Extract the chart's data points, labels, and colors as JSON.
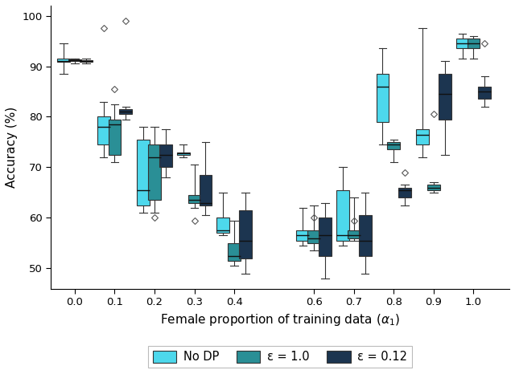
{
  "title": "",
  "xlabel": "Female proportion of training data ($\\alpha_1$)",
  "ylabel": "Accuracy (%)",
  "ylim": [
    46,
    102
  ],
  "xlim": [
    -0.06,
    1.09
  ],
  "colors": {
    "no_dp": "#4DD8EC",
    "eps1": "#2A8F96",
    "eps012": "#1C3550"
  },
  "box_width": 0.032,
  "offsets": {
    "no_dp": -0.028,
    "eps1": 0.0,
    "eps012": 0.028
  },
  "series": {
    "no_dp": {
      "label": "No DP",
      "boxes": {
        "0.0": {
          "whislo": 88.5,
          "q1": 90.8,
          "med": 91.1,
          "q3": 91.5,
          "whishi": 94.5,
          "fliers": []
        },
        "0.1": {
          "whislo": 72.0,
          "q1": 74.5,
          "med": 78.0,
          "q3": 80.0,
          "whishi": 83.0,
          "fliers": [
            97.5
          ]
        },
        "0.2": {
          "whislo": 61.0,
          "q1": 62.5,
          "med": 65.5,
          "q3": 75.5,
          "whishi": 78.0,
          "fliers": []
        },
        "0.3": {
          "whislo": 72.0,
          "q1": 72.5,
          "med": 72.7,
          "q3": 73.0,
          "whishi": 74.5,
          "fliers": []
        },
        "0.4": {
          "whislo": 56.5,
          "q1": 57.0,
          "med": 57.5,
          "q3": 60.0,
          "whishi": 65.0,
          "fliers": []
        },
        "0.6": {
          "whislo": 54.5,
          "q1": 55.5,
          "med": 56.5,
          "q3": 57.5,
          "whishi": 62.0,
          "fliers": []
        },
        "0.7": {
          "whislo": 54.5,
          "q1": 55.5,
          "med": 56.5,
          "q3": 65.5,
          "whishi": 70.0,
          "fliers": []
        },
        "0.8": {
          "whislo": 74.5,
          "q1": 79.0,
          "med": 86.0,
          "q3": 88.5,
          "whishi": 93.5,
          "fliers": []
        },
        "0.9": {
          "whislo": 72.0,
          "q1": 74.5,
          "med": 76.5,
          "q3": 77.5,
          "whishi": 97.5,
          "fliers": []
        },
        "1.0": {
          "whislo": 91.5,
          "q1": 93.5,
          "med": 94.5,
          "q3": 95.5,
          "whishi": 96.5,
          "fliers": []
        }
      }
    },
    "eps1": {
      "label": "ε = 1.0",
      "boxes": {
        "0.0": {
          "whislo": 90.5,
          "q1": 91.0,
          "med": 91.2,
          "q3": 91.3,
          "whishi": 91.5,
          "fliers": []
        },
        "0.1": {
          "whislo": 71.0,
          "q1": 72.5,
          "med": 78.5,
          "q3": 79.5,
          "whishi": 82.5,
          "fliers": [
            85.5
          ]
        },
        "0.2": {
          "whislo": 61.0,
          "q1": 63.5,
          "med": 72.0,
          "q3": 74.5,
          "whishi": 78.0,
          "fliers": [
            60.0
          ]
        },
        "0.3": {
          "whislo": 62.0,
          "q1": 63.0,
          "med": 63.5,
          "q3": 64.5,
          "whishi": 70.5,
          "fliers": [
            59.5
          ]
        },
        "0.4": {
          "whislo": 50.5,
          "q1": 51.5,
          "med": 52.5,
          "q3": 55.0,
          "whishi": 59.5,
          "fliers": []
        },
        "0.6": {
          "whislo": 53.5,
          "q1": 55.0,
          "med": 56.0,
          "q3": 57.5,
          "whishi": 62.5,
          "fliers": [
            60.0
          ]
        },
        "0.7": {
          "whislo": 55.5,
          "q1": 56.0,
          "med": 56.5,
          "q3": 57.5,
          "whishi": 64.0,
          "fliers": [
            59.5
          ]
        },
        "0.8": {
          "whislo": 71.0,
          "q1": 73.5,
          "med": 74.5,
          "q3": 75.0,
          "whishi": 75.5,
          "fliers": []
        },
        "0.9": {
          "whislo": 65.0,
          "q1": 65.5,
          "med": 66.0,
          "q3": 66.5,
          "whishi": 67.0,
          "fliers": [
            80.5
          ]
        },
        "1.0": {
          "whislo": 91.5,
          "q1": 93.5,
          "med": 94.5,
          "q3": 95.5,
          "whishi": 96.0,
          "fliers": []
        }
      }
    },
    "eps012": {
      "label": "ε = 0.12",
      "boxes": {
        "0.0": {
          "whislo": 90.5,
          "q1": 90.8,
          "med": 91.0,
          "q3": 91.2,
          "whishi": 91.5,
          "fliers": []
        },
        "0.1": {
          "whislo": 79.5,
          "q1": 80.5,
          "med": 81.0,
          "q3": 81.5,
          "whishi": 82.0,
          "fliers": [
            99.0
          ]
        },
        "0.2": {
          "whislo": 68.0,
          "q1": 70.0,
          "med": 72.5,
          "q3": 74.5,
          "whishi": 77.5,
          "fliers": []
        },
        "0.3": {
          "whislo": 60.5,
          "q1": 62.5,
          "med": 63.0,
          "q3": 68.5,
          "whishi": 75.0,
          "fliers": []
        },
        "0.4": {
          "whislo": 49.0,
          "q1": 52.0,
          "med": 55.5,
          "q3": 61.5,
          "whishi": 65.0,
          "fliers": []
        },
        "0.6": {
          "whislo": 48.0,
          "q1": 52.5,
          "med": 56.5,
          "q3": 60.0,
          "whishi": 63.0,
          "fliers": []
        },
        "0.7": {
          "whislo": 49.0,
          "q1": 52.5,
          "med": 55.5,
          "q3": 60.5,
          "whishi": 65.0,
          "fliers": []
        },
        "0.8": {
          "whislo": 62.5,
          "q1": 64.0,
          "med": 65.5,
          "q3": 66.0,
          "whishi": 66.5,
          "fliers": [
            69.0
          ]
        },
        "0.9": {
          "whislo": 72.5,
          "q1": 79.5,
          "med": 84.5,
          "q3": 88.5,
          "whishi": 91.0,
          "fliers": []
        },
        "1.0": {
          "whislo": 82.0,
          "q1": 83.5,
          "med": 85.0,
          "q3": 86.0,
          "whishi": 88.0,
          "fliers": [
            94.5
          ]
        }
      }
    }
  },
  "legend": {
    "labels": [
      "No DP",
      "ε = 1.0",
      "ε = 0.12"
    ],
    "colors": [
      "#4DD8EC",
      "#2A8F96",
      "#1C3550"
    ]
  },
  "yticks": [
    50,
    60,
    70,
    80,
    90,
    100
  ],
  "xticks": [
    0.0,
    0.1,
    0.2,
    0.3,
    0.4,
    0.6,
    0.7,
    0.8,
    0.9,
    1.0
  ]
}
